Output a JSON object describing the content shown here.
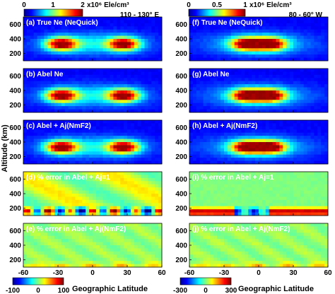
{
  "figure": {
    "ylabel": "Altitude (km)",
    "xlabel": "Geographic Latitude",
    "columns": [
      {
        "region": "110 - 130° E",
        "top_colorbar": {
          "ticks": [
            "0",
            "1",
            "2"
          ],
          "unit_text": "x10⁶ Ele/cm³",
          "range": [
            0,
            2
          ]
        },
        "bottom_colorbar": {
          "ticks": [
            "-100",
            "0",
            "100"
          ],
          "range": [
            -100,
            100
          ]
        },
        "panels": [
          {
            "label": "(a) True Ne (NeQuick)",
            "kind": "density",
            "peaks": [
              -27,
              27
            ]
          },
          {
            "label": "(b) Abel Ne",
            "kind": "density",
            "peaks": [
              -27,
              27
            ]
          },
          {
            "label": "(c) Abel + Aj(NmF2)",
            "kind": "density",
            "peaks": [
              -27,
              27
            ]
          },
          {
            "label": "(d) % error in Abel + Aj=1",
            "kind": "error_low"
          },
          {
            "label": "(e) % error in Abel + Aj(NmF2)",
            "kind": "error_small"
          }
        ]
      },
      {
        "region": "80 - 60° W",
        "top_colorbar": {
          "ticks": [
            "0",
            "0.5",
            "1"
          ],
          "unit_text": "x10⁶ Ele/cm³",
          "range": [
            0,
            1
          ]
        },
        "bottom_colorbar": {
          "ticks": [
            "-300",
            "0",
            "300"
          ],
          "range": [
            -300,
            300
          ]
        },
        "panels": [
          {
            "label": "(f) True Ne (NeQuick)",
            "kind": "density",
            "peaks": [
              -10,
              10
            ]
          },
          {
            "label": "(g) Abel Ne",
            "kind": "density",
            "peaks": [
              -10,
              10
            ]
          },
          {
            "label": "(h) Abel + Aj(NmF2)",
            "kind": "density",
            "peaks": [
              -10,
              10
            ]
          },
          {
            "label": "(i) % error in Abel + Aj=1",
            "kind": "error_high"
          },
          {
            "label": "(j) % error in Abel + Aj(NmF2)",
            "kind": "error_small"
          }
        ]
      }
    ],
    "x_ticks": [
      "-60",
      "-30",
      "0",
      "30",
      "60"
    ],
    "y_ticks": [
      "600",
      "400",
      "200"
    ]
  },
  "chart_data": {
    "type": "heatmap",
    "x_range": [
      -60,
      60
    ],
    "y_range": [
      100,
      700
    ],
    "x_ticks": [
      -60,
      -30,
      0,
      30,
      60
    ],
    "y_ticks": [
      200,
      400,
      600
    ],
    "colormap": "jet"
  }
}
